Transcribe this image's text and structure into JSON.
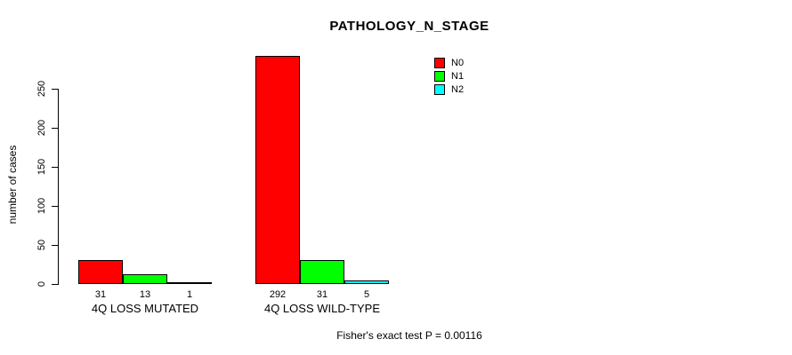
{
  "title": "PATHOLOGY_N_STAGE",
  "footer": "Fisher's exact test P = 0.00116",
  "legend": {
    "items": [
      {
        "label": "N0",
        "color": "#FF0000"
      },
      {
        "label": "N1",
        "color": "#00FF00"
      },
      {
        "label": "N2",
        "color": "#00FFFF"
      }
    ]
  },
  "chart_data": {
    "type": "bar",
    "title": "PATHOLOGY_N_STAGE",
    "xlabel": "",
    "ylabel": "number of cases",
    "ylim": [
      0,
      250
    ],
    "yticks": [
      0,
      50,
      100,
      150,
      200,
      250
    ],
    "grid": false,
    "legend_position": "top-right",
    "categories": [
      "4Q LOSS MUTATED",
      "4Q LOSS WILD-TYPE"
    ],
    "series": [
      {
        "name": "N0",
        "color": "#FF0000",
        "values": [
          31,
          292
        ]
      },
      {
        "name": "N1",
        "color": "#00FF00",
        "values": [
          13,
          31
        ]
      },
      {
        "name": "N2",
        "color": "#00FFFF",
        "values": [
          1,
          5
        ]
      }
    ],
    "bar_labels": [
      [
        "31",
        "13",
        "1"
      ],
      [
        "292",
        "31",
        "5"
      ]
    ],
    "annotation": "Fisher's exact test P = 0.00116"
  }
}
